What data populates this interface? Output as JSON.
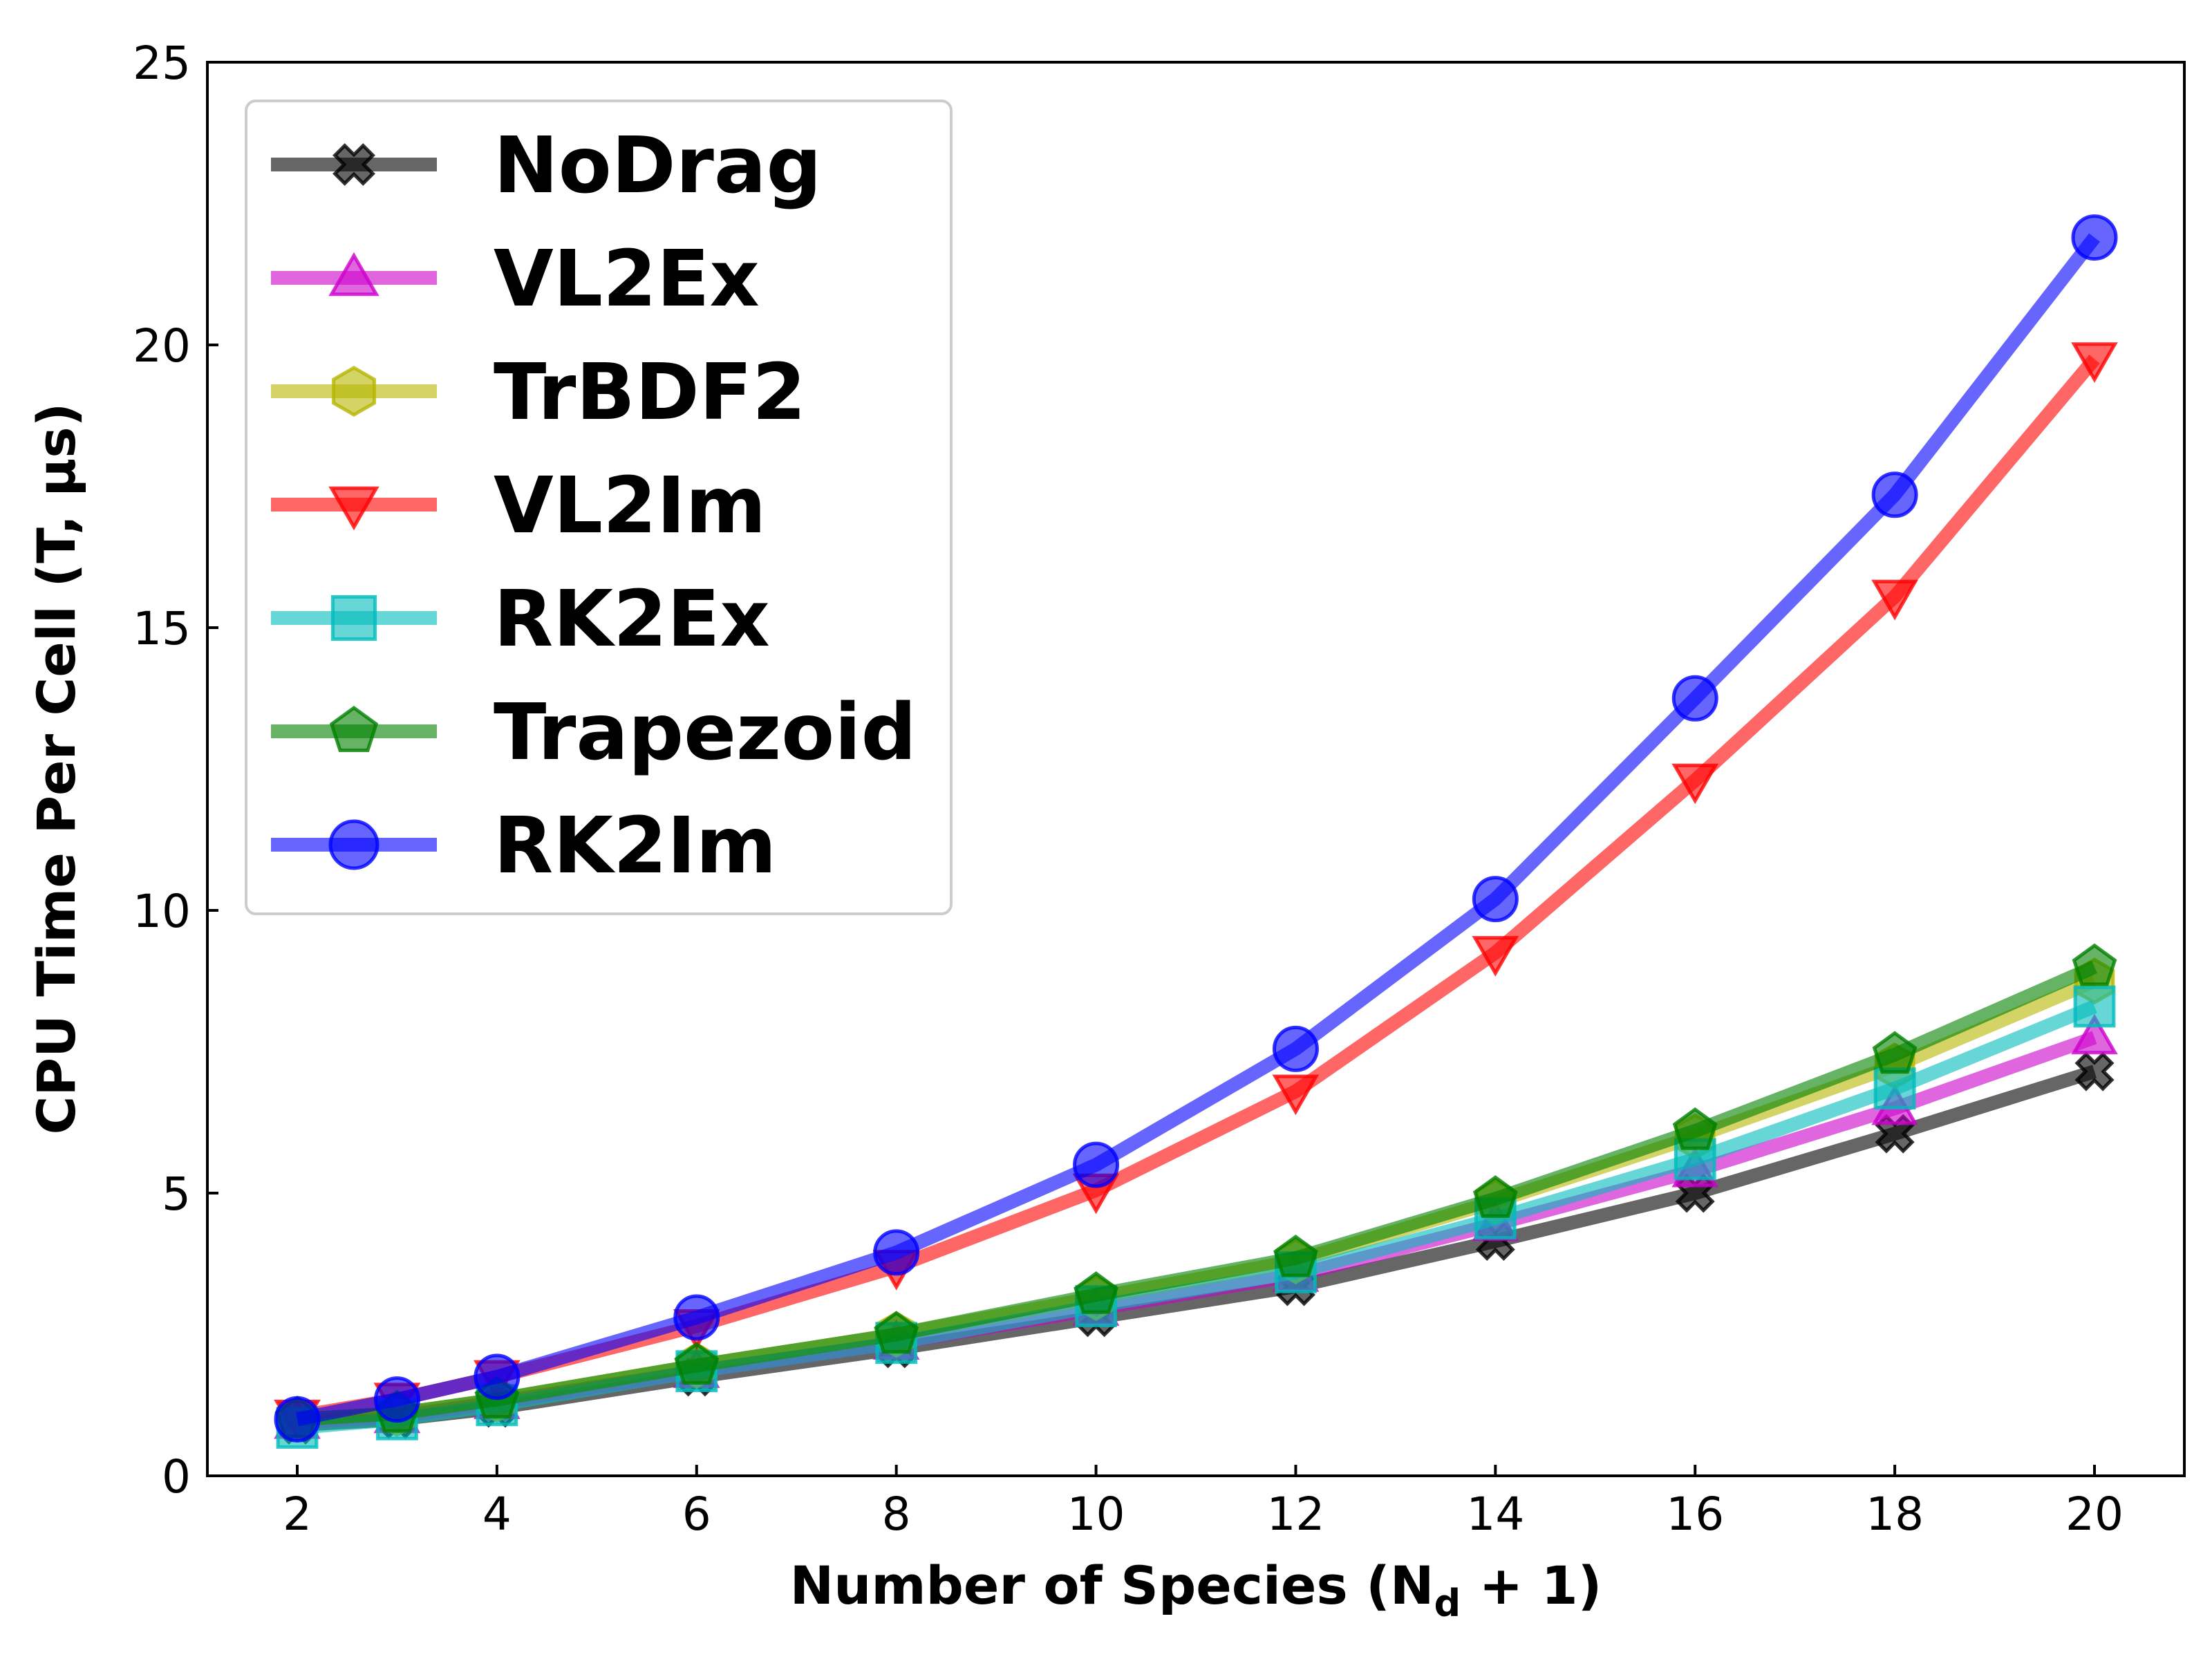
{
  "chart_data": {
    "type": "line",
    "title": "",
    "xlabel": "Number of Species",
    "xlabel_suffix": "(N",
    "xlabel_sub": "d",
    "xlabel_end": " + 1)",
    "ylabel": "CPU Time Per Cell (T, μs)",
    "xlim": [
      1.1,
      20.9
    ],
    "ylim": [
      0,
      25
    ],
    "xticks": [
      2,
      4,
      6,
      8,
      10,
      12,
      14,
      16,
      18,
      20
    ],
    "yticks": [
      0,
      5,
      10,
      15,
      20,
      25
    ],
    "grid": false,
    "legend_position": "top-left",
    "x": [
      2,
      3,
      4,
      6,
      8,
      10,
      12,
      14,
      16,
      18,
      20
    ],
    "series": [
      {
        "name": "NoDrag",
        "color": "#000000",
        "marker": "x",
        "values": [
          0.9,
          1.0,
          1.2,
          1.75,
          2.25,
          2.8,
          3.35,
          4.15,
          5.0,
          6.05,
          7.15
        ]
      },
      {
        "name": "VL2Ex",
        "color": "#cc00cc",
        "marker": "triangle-up",
        "values": [
          0.95,
          1.05,
          1.3,
          1.85,
          2.35,
          2.95,
          3.55,
          4.45,
          5.4,
          6.5,
          7.75
        ]
      },
      {
        "name": "TrBDF2",
        "color": "#b5b500",
        "marker": "hexagon",
        "values": [
          1.0,
          1.1,
          1.35,
          1.95,
          2.5,
          3.15,
          3.8,
          4.85,
          6.0,
          7.25,
          8.75
        ]
      },
      {
        "name": "VL2Im",
        "color": "#ff0000",
        "marker": "triangle-down",
        "values": [
          1.05,
          1.35,
          1.75,
          2.65,
          3.7,
          5.05,
          6.8,
          9.25,
          12.3,
          15.55,
          19.75
        ]
      },
      {
        "name": "RK2Ex",
        "color": "#00bbbb",
        "marker": "square",
        "values": [
          0.85,
          1.0,
          1.25,
          1.85,
          2.35,
          3.0,
          3.6,
          4.55,
          5.6,
          6.85,
          8.3
        ]
      },
      {
        "name": "Trapezoid",
        "color": "#008000",
        "marker": "pentagon",
        "values": [
          1.0,
          1.1,
          1.35,
          1.95,
          2.5,
          3.2,
          3.85,
          4.9,
          6.1,
          7.45,
          9.0
        ]
      },
      {
        "name": "RK2Im",
        "color": "#0000ff",
        "marker": "circle",
        "values": [
          1.0,
          1.35,
          1.75,
          2.8,
          3.95,
          5.5,
          7.55,
          10.2,
          13.75,
          17.35,
          21.9
        ]
      }
    ]
  }
}
